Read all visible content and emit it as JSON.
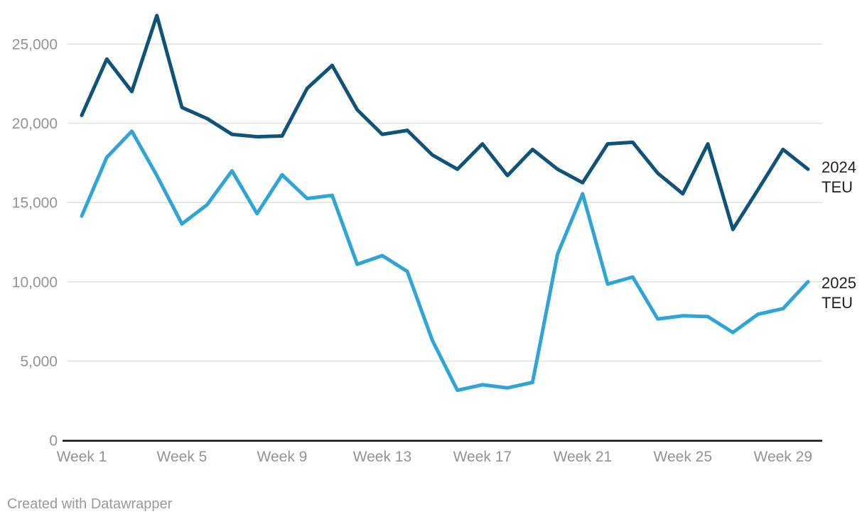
{
  "chart_data": {
    "type": "line",
    "x": [
      1,
      2,
      3,
      4,
      5,
      6,
      7,
      8,
      9,
      10,
      11,
      12,
      13,
      14,
      15,
      16,
      17,
      18,
      19,
      20,
      21,
      22,
      23,
      24,
      25,
      26,
      27,
      28,
      29,
      30
    ],
    "x_unit": "Week",
    "series": [
      {
        "name": "2024 TEU",
        "legend_lines": [
          "2024",
          "TEU"
        ],
        "color": "#0f5478",
        "values": [
          20500,
          24050,
          22000,
          26800,
          21000,
          20300,
          19300,
          19150,
          19200,
          22200,
          23650,
          20850,
          19300,
          19550,
          18000,
          17100,
          18700,
          16700,
          18350,
          17100,
          16250,
          18700,
          18800,
          16850,
          15550,
          18700,
          13300,
          15800,
          18350,
          17100
        ]
      },
      {
        "name": "2025 TEU",
        "legend_lines": [
          "2025",
          "TEU"
        ],
        "color": "#2ea5d6",
        "values": [
          14150,
          17850,
          19500,
          16700,
          13650,
          14850,
          17000,
          14300,
          16750,
          15250,
          15450,
          11100,
          11650,
          10650,
          6300,
          3150,
          3500,
          3300,
          3650,
          11750,
          15550,
          9850,
          10300,
          7650,
          7850,
          7800,
          6800,
          7950,
          8300,
          10000
        ]
      }
    ],
    "title": "",
    "xlabel": "",
    "ylabel": "",
    "ylim": [
      0,
      25000
    ],
    "grid": "horizontal",
    "legend_position": "right",
    "y_axis": {
      "ticks": [
        {
          "value": 0,
          "label": "0"
        },
        {
          "value": 5000,
          "label": "5,000"
        },
        {
          "value": 10000,
          "label": "10,000"
        },
        {
          "value": 15000,
          "label": "15,000"
        },
        {
          "value": 20000,
          "label": "20,000"
        },
        {
          "value": 25000,
          "label": "25,000"
        }
      ]
    },
    "x_axis": {
      "ticks": [
        {
          "week": 1,
          "label": "Week 1"
        },
        {
          "week": 5,
          "label": "Week 5"
        },
        {
          "week": 9,
          "label": "Week 9"
        },
        {
          "week": 13,
          "label": "Week 13"
        },
        {
          "week": 17,
          "label": "Week 17"
        },
        {
          "week": 21,
          "label": "Week 21"
        },
        {
          "week": 25,
          "label": "Week 25"
        },
        {
          "week": 29,
          "label": "Week 29"
        }
      ]
    },
    "colors": {
      "gridline": "#e2e2e2",
      "axis_line": "#141414",
      "tick_label": "#939393"
    }
  },
  "footer": {
    "text": "Created with Datawrapper"
  }
}
